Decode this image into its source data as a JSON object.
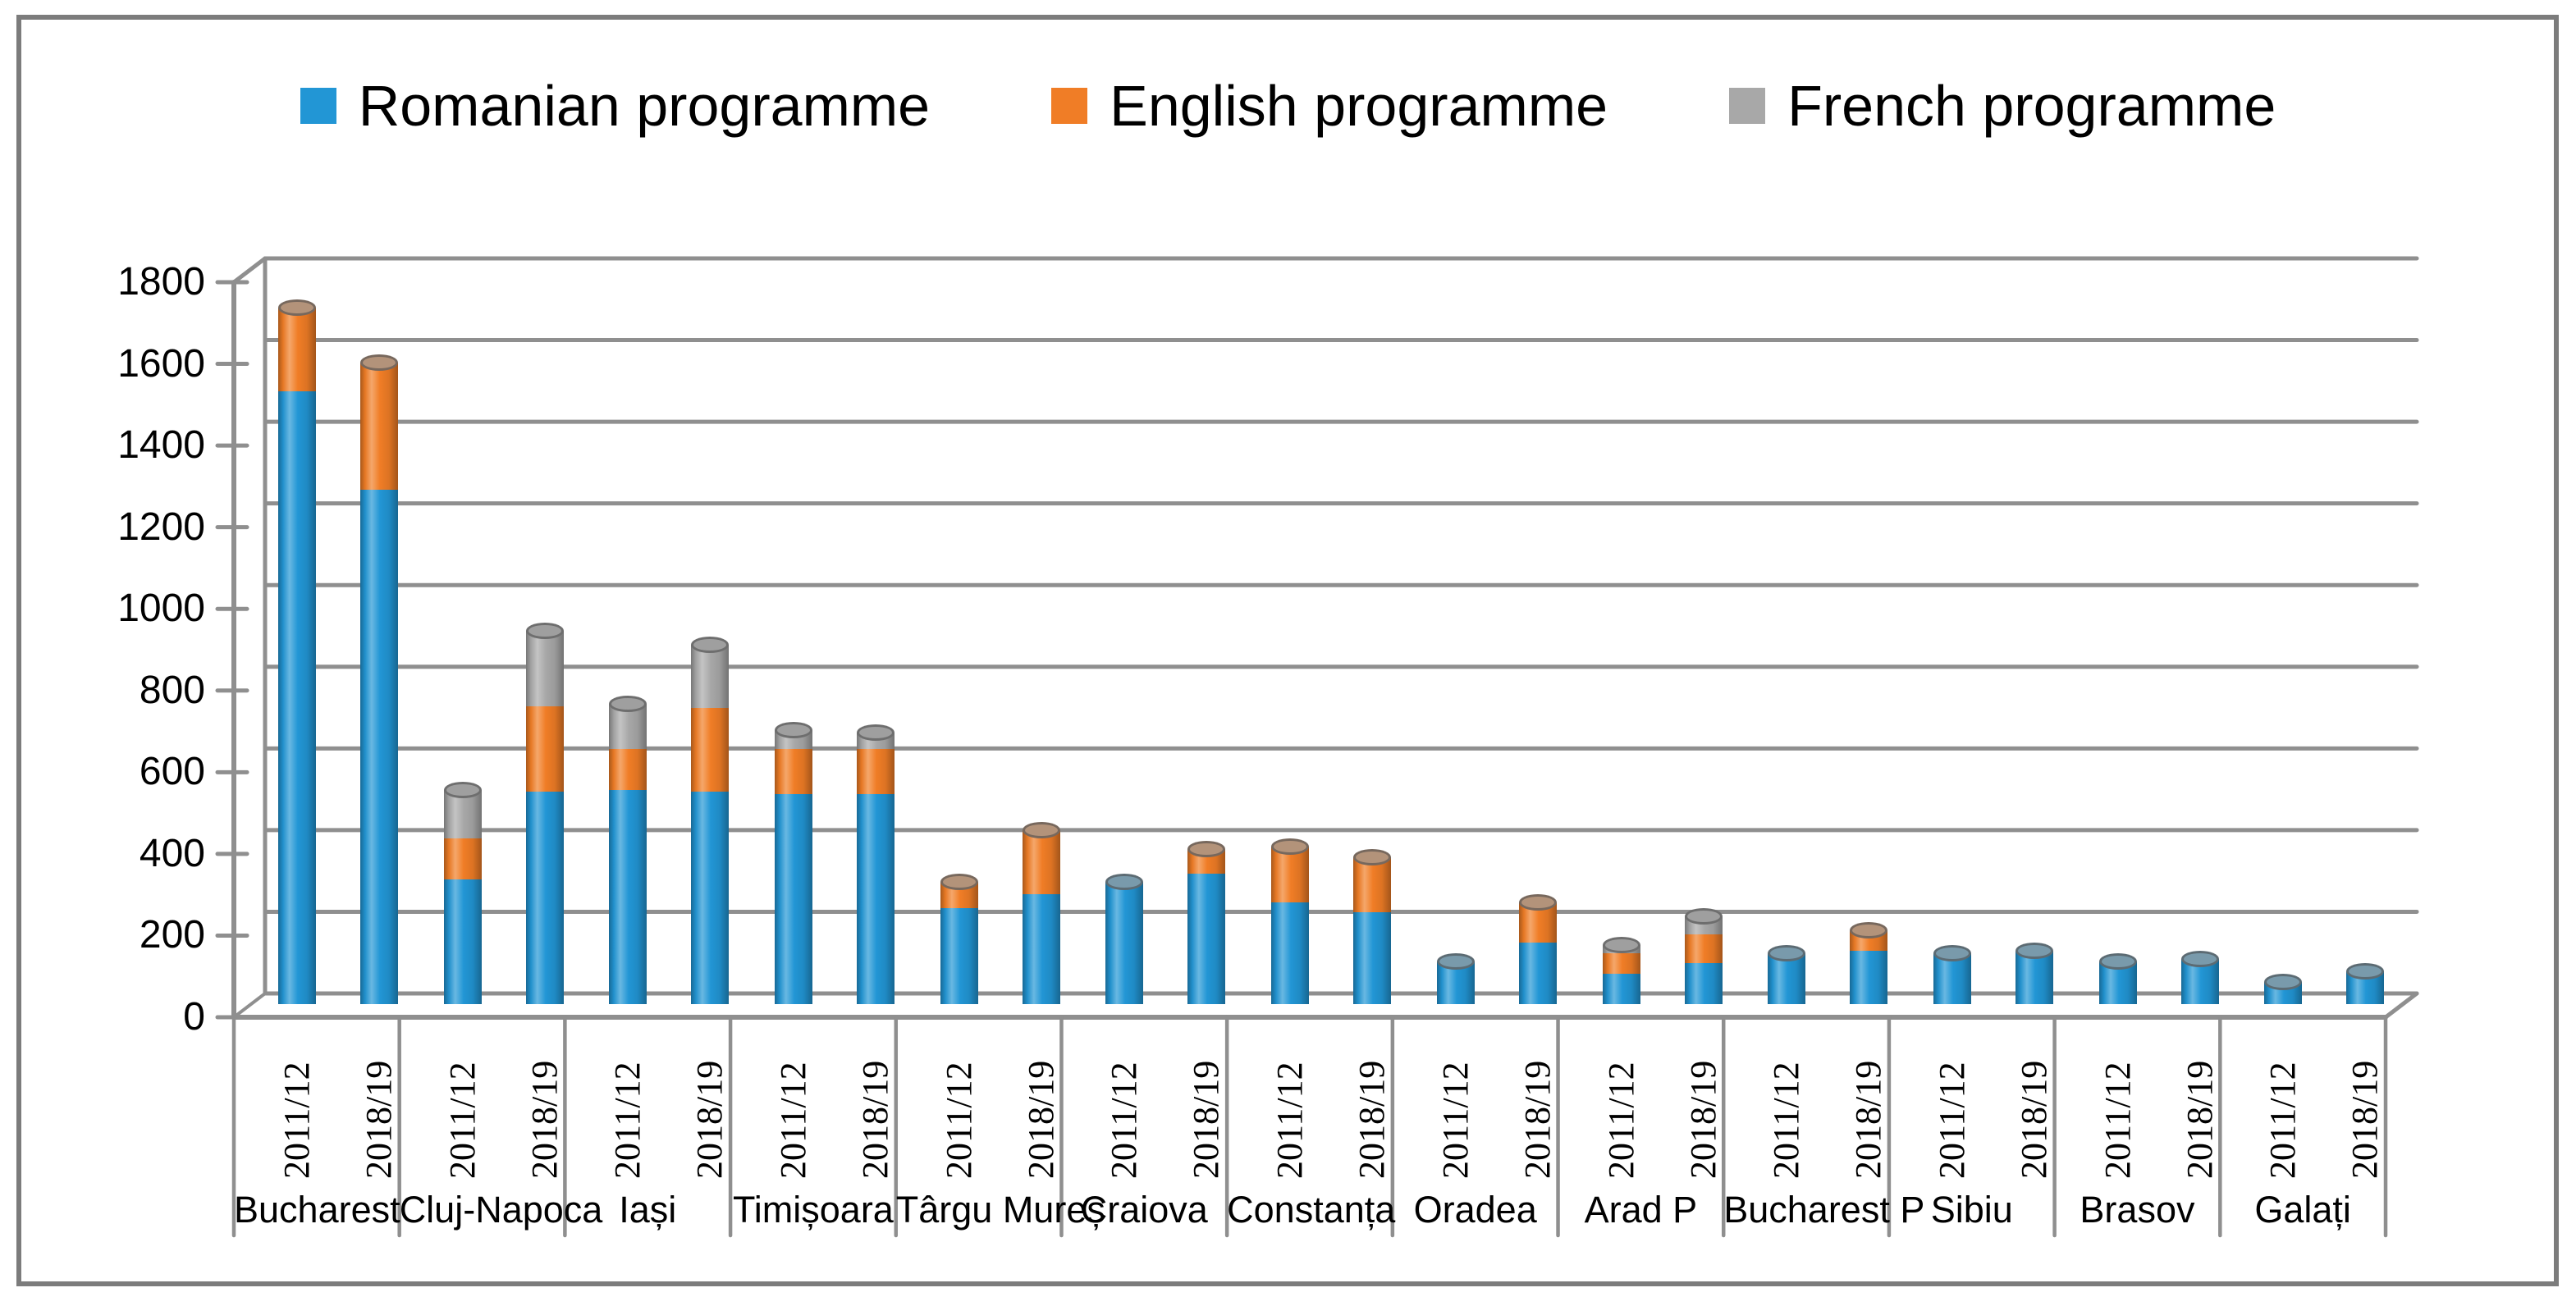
{
  "legend": [
    {
      "label": "Romanian programme",
      "color": "#2296d5"
    },
    {
      "label": "English programme",
      "color": "#f07d26"
    },
    {
      "label": "French programme",
      "color": "#a8a8a8"
    }
  ],
  "y_axis": {
    "ticks": [
      "1800",
      "1600",
      "1400",
      "1200",
      "1000",
      "800",
      "600",
      "400",
      "200",
      "0"
    ],
    "min": 0,
    "max": 1800,
    "step": 200
  },
  "x_axis": {
    "year_labels": [
      "2011/12",
      "2018/19"
    ]
  },
  "chart_data": {
    "type": "bar",
    "stacked": true,
    "title": "",
    "xlabel": "",
    "ylabel": "",
    "ylim": [
      0,
      1800
    ],
    "grid": true,
    "legend_position": "top-center",
    "categories": [
      "Bucharest",
      "Cluj-Napoca",
      "Iași",
      "Timișoara",
      "Târgu Mureș",
      "Craiova",
      "Constanța",
      "Oradea",
      "Arad P",
      "Bucharest P",
      "Sibiu",
      "Brasov",
      "Galați"
    ],
    "years": [
      "2011/12",
      "2018/19"
    ],
    "series": [
      {
        "name": "Romanian programme",
        "color": "#2296d5",
        "values": {
          "2011/12": [
            1500,
            305,
            525,
            515,
            235,
            300,
            250,
            105,
            75,
            125,
            125,
            105,
            55
          ],
          "2018/19": [
            1260,
            520,
            520,
            515,
            270,
            320,
            225,
            150,
            100,
            130,
            130,
            110,
            80
          ]
        }
      },
      {
        "name": "English programme",
        "color": "#f07d26",
        "values": {
          "2011/12": [
            205,
            100,
            100,
            110,
            65,
            0,
            135,
            0,
            50,
            0,
            0,
            0,
            0
          ],
          "2018/19": [
            310,
            210,
            205,
            110,
            155,
            60,
            135,
            100,
            70,
            50,
            0,
            0,
            0
          ]
        }
      },
      {
        "name": "French programme",
        "color": "#a8a8a8",
        "values": {
          "2011/12": [
            0,
            120,
            110,
            45,
            0,
            0,
            0,
            0,
            20,
            0,
            0,
            0,
            0
          ],
          "2018/19": [
            0,
            185,
            155,
            40,
            0,
            0,
            0,
            0,
            45,
            0,
            0,
            0,
            0
          ]
        }
      }
    ]
  },
  "colors": {
    "gridline": "#8f8f8f",
    "axis": "#8a8a8a",
    "figure_border": "#7c7c7c",
    "text": "#000000",
    "background": "#ffffff"
  }
}
